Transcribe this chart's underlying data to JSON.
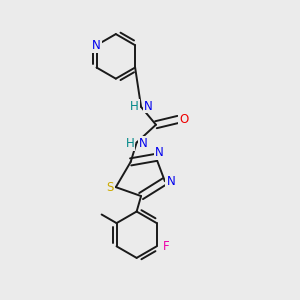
{
  "bg_color": "#ebebeb",
  "bond_color": "#1a1a1a",
  "bond_width": 1.4,
  "dbo": 0.012,
  "atom_colors": {
    "N": "#0000ee",
    "O": "#ee0000",
    "S": "#ccaa00",
    "F": "#ee00aa",
    "H": "#008888",
    "C": "#1a1a1a"
  },
  "fs": 8.5
}
